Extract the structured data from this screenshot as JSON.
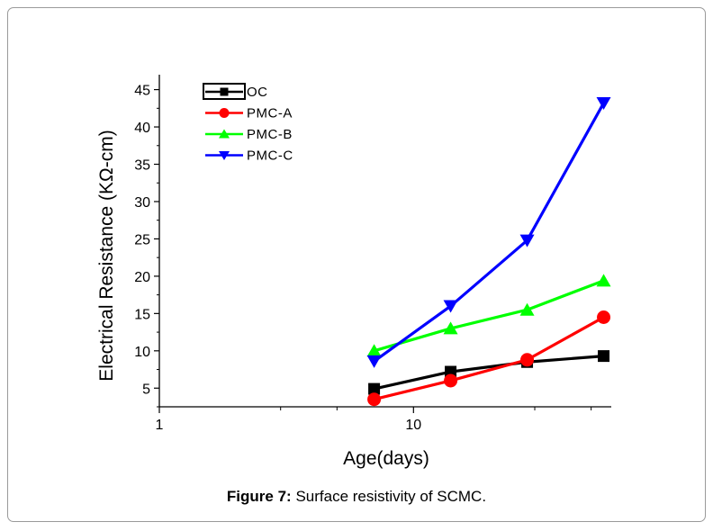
{
  "caption": {
    "label": "Figure 7:",
    "text": "Surface resistivity of SCMC."
  },
  "chart_data": {
    "type": "line",
    "xscale": "log",
    "xlim": [
      1,
      60
    ],
    "ylim": [
      2.5,
      47
    ],
    "xticks": [
      1,
      10
    ],
    "xtick_labels": [
      "1",
      "10"
    ],
    "yticks": [
      5,
      10,
      15,
      20,
      25,
      30,
      35,
      40,
      45
    ],
    "ytick_labels": [
      "5",
      "10",
      "15",
      "20",
      "25",
      "30",
      "35",
      "40",
      "45"
    ],
    "xlabel": "Age(days)",
    "ylabel": "Electrical Resistance (KΩ-cm)",
    "legend_position": "top-left",
    "x": [
      7,
      14,
      28,
      56
    ],
    "series": [
      {
        "name": "OC",
        "color": "#000000",
        "marker": "square",
        "values": [
          4.9,
          7.2,
          8.5,
          9.3
        ]
      },
      {
        "name": "PMC-A",
        "color": "#ff0000",
        "marker": "circle",
        "values": [
          3.5,
          6.0,
          8.8,
          14.5
        ]
      },
      {
        "name": "PMC-B",
        "color": "#00ff00",
        "marker": "triangle-up",
        "values": [
          10.0,
          13.0,
          15.5,
          19.4
        ]
      },
      {
        "name": "PMC-C",
        "color": "#0000ff",
        "marker": "triangle-down",
        "values": [
          8.6,
          16.0,
          24.8,
          43.2
        ]
      }
    ]
  }
}
